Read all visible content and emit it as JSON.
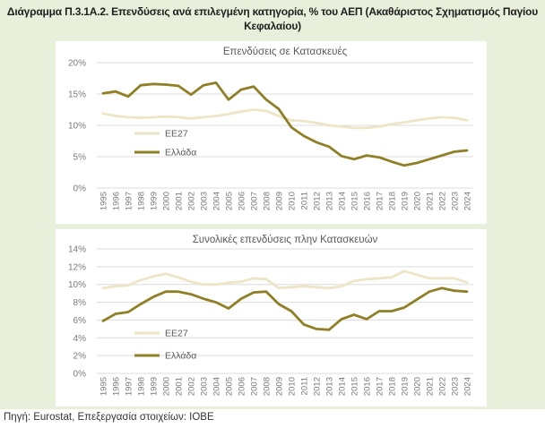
{
  "title": "Διάγραμμα Π.3.1Α.2. Επενδύσεις ανά επιλεγμένη κατηγορία, % του ΑΕΠ (Ακαθάριστος Σχηματισμός Παγίου Κεφαλαίου)",
  "source": "Πηγή: Eurostat, Επεξεργασία στοιχείων: ΙΟΒΕ",
  "colors": {
    "ee27": "#ece6c6",
    "greece": "#8f7f25",
    "background": "#e8efda",
    "grid": "#dcdcdc",
    "text": "#7a7a7a"
  },
  "chart_data": [
    {
      "type": "line",
      "title": "Επενδύσεις σε Κατασκευές",
      "categories": [
        "1995",
        "1996",
        "1997",
        "1998",
        "1999",
        "2000",
        "2001",
        "2002",
        "2003",
        "2004",
        "2005",
        "2006",
        "2007",
        "2008",
        "2009",
        "2010",
        "2011",
        "2012",
        "2013",
        "2014",
        "2015",
        "2016",
        "2017",
        "2018",
        "2019",
        "2020",
        "2021",
        "2022",
        "2023",
        "2024"
      ],
      "yticks": [
        "0%",
        "5%",
        "10%",
        "15%",
        "20%"
      ],
      "ylim": [
        0,
        20
      ],
      "legend_position": "center-left",
      "grid": true,
      "series": [
        {
          "name": "ΕΕ27",
          "values": [
            11.9,
            11.5,
            11.3,
            11.2,
            11.3,
            11.4,
            11.3,
            11.1,
            11.3,
            11.5,
            11.8,
            12.2,
            12.5,
            12.3,
            11.5,
            10.8,
            10.7,
            10.4,
            10.0,
            9.8,
            9.6,
            9.6,
            9.8,
            10.2,
            10.5,
            10.8,
            11.1,
            11.3,
            11.2,
            10.8
          ]
        },
        {
          "name": "Ελλάδα",
          "values": [
            15.1,
            15.4,
            14.6,
            16.4,
            16.6,
            16.5,
            16.3,
            14.9,
            16.4,
            16.8,
            14.1,
            15.7,
            16.2,
            14.1,
            12.6,
            9.7,
            8.3,
            7.3,
            6.6,
            5.1,
            4.6,
            5.2,
            4.9,
            4.2,
            3.6,
            4.0,
            4.6,
            5.2,
            5.8,
            6.0
          ]
        }
      ]
    },
    {
      "type": "line",
      "title": "Συνολικές επενδύσεις πλην Κατασκευών",
      "categories": [
        "1995",
        "1996",
        "1997",
        "1998",
        "1999",
        "2000",
        "2001",
        "2002",
        "2003",
        "2004",
        "2005",
        "2006",
        "2007",
        "2008",
        "2009",
        "2010",
        "2011",
        "2012",
        "2013",
        "2014",
        "2015",
        "2016",
        "2017",
        "2018",
        "2019",
        "2020",
        "2021",
        "2022",
        "2023",
        "2024"
      ],
      "yticks": [
        "0%",
        "2%",
        "4%",
        "6%",
        "8%",
        "10%",
        "12%",
        "14%"
      ],
      "ylim": [
        0,
        14
      ],
      "legend_position": "bottom-left",
      "grid": true,
      "series": [
        {
          "name": "ΕΕ27",
          "values": [
            9.6,
            9.8,
            9.9,
            10.5,
            10.9,
            11.2,
            10.8,
            10.3,
            10.0,
            10.0,
            10.2,
            10.3,
            10.7,
            10.6,
            9.6,
            9.7,
            9.8,
            9.7,
            9.6,
            9.8,
            10.4,
            10.6,
            10.7,
            10.8,
            11.5,
            11.1,
            10.7,
            10.7,
            10.7,
            10.2
          ]
        },
        {
          "name": "Ελλάδα",
          "values": [
            5.9,
            6.7,
            6.9,
            7.8,
            8.6,
            9.2,
            9.2,
            8.9,
            8.4,
            8.0,
            7.3,
            8.4,
            9.1,
            9.2,
            7.8,
            7.0,
            5.5,
            5.0,
            4.9,
            6.1,
            6.6,
            6.1,
            7.0,
            7.0,
            7.4,
            8.3,
            9.2,
            9.6,
            9.3,
            9.2
          ]
        }
      ]
    }
  ]
}
